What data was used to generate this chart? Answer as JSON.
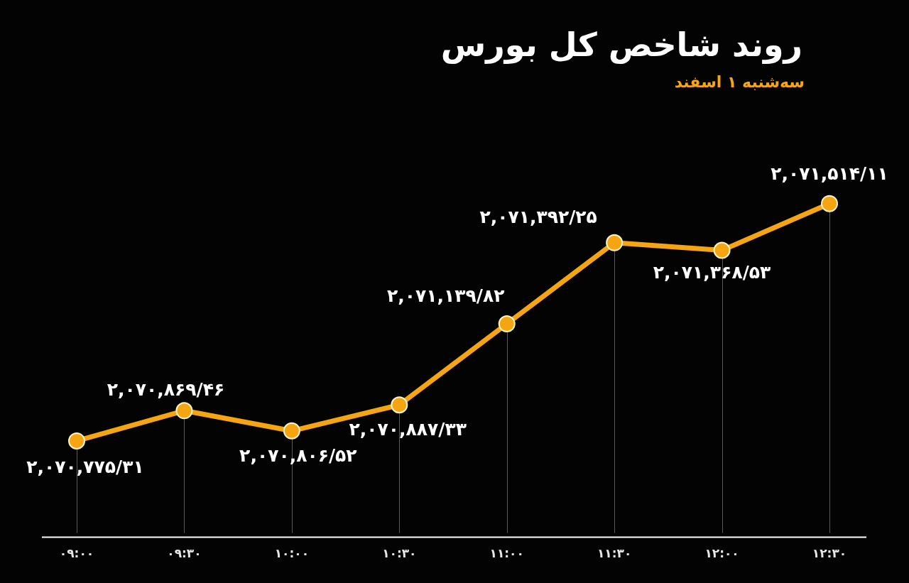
{
  "chart_data": {
    "type": "line",
    "title": "روند شاخص کل بورس",
    "subtitle": "سه‌شنبه ۱ اسفند",
    "categories": [
      "۰۹:۰۰",
      "۰۹:۳۰",
      "۱۰:۰۰",
      "۱۰:۳۰",
      "۱۱:۰۰",
      "۱۱:۳۰",
      "۱۲:۰۰",
      "۱۲:۳۰"
    ],
    "values": [
      2070775.31,
      2070869.46,
      2070806.52,
      2070887.33,
      2071139.82,
      2071392.25,
      2071368.53,
      2071514.11
    ],
    "value_labels": [
      "۲,۰۷۰,۷۷۵/۳۱",
      "۲,۰۷۰,۸۶۹/۴۶",
      "۲,۰۷۰,۸۰۶/۵۲",
      "۲,۰۷۰,۸۸۷/۳۳",
      "۲,۰۷۱,۱۳۹/۸۲",
      "۲,۰۷۱,۳۹۲/۲۵",
      "۲,۰۷۱,۳۶۸/۵۳",
      "۲,۰۷۱,۵۱۴/۱۱"
    ],
    "color": "#f5a511",
    "tick_labels": "x",
    "grid": "x",
    "marker": "circle",
    "line_style": "solid"
  }
}
